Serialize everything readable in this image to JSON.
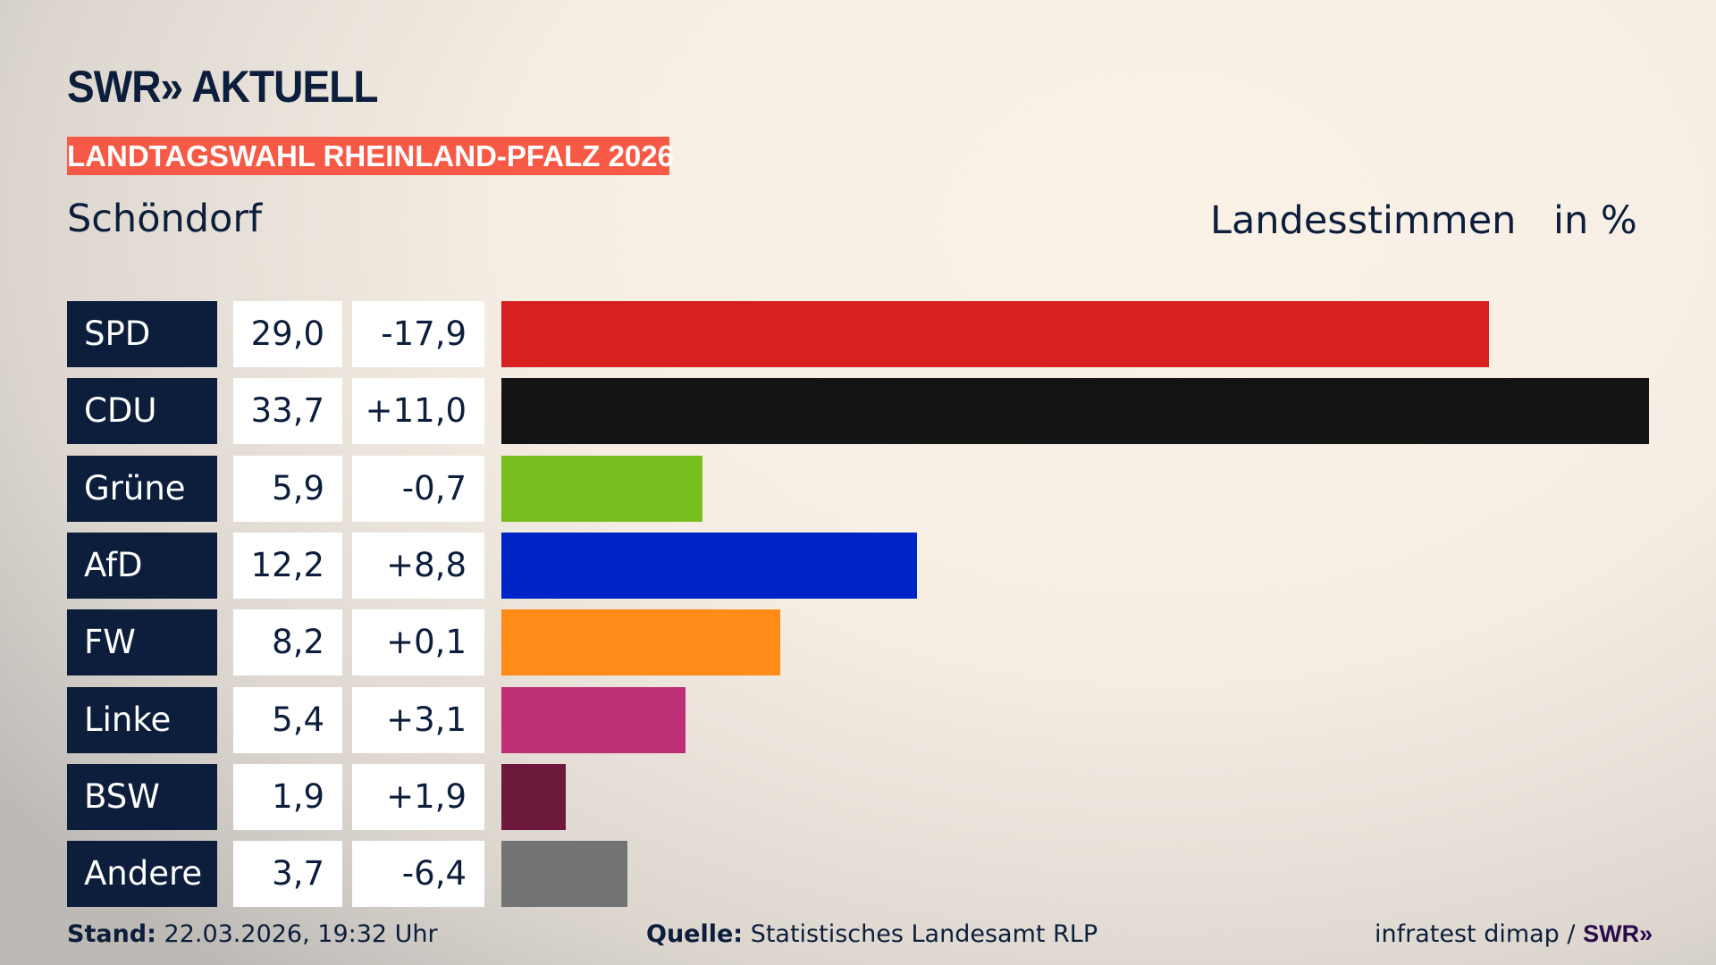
{
  "header": {
    "logo": "SWR» AKTUELL",
    "banner": "LANDTAGSWAHL RHEINLAND-PFALZ 2026",
    "place": "Schöndorf",
    "measure": "Landesstimmen",
    "unit": "in %"
  },
  "chart_data": {
    "type": "bar",
    "orientation": "horizontal",
    "categories": [
      "SPD",
      "CDU",
      "Grüne",
      "AfD",
      "FW",
      "Linke",
      "BSW",
      "Andere"
    ],
    "values": [
      29.0,
      33.7,
      5.9,
      12.2,
      8.2,
      5.4,
      1.9,
      3.7
    ],
    "value_labels": [
      "29,0",
      "33,7",
      "5,9",
      "12,2",
      "8,2",
      "5,4",
      "1,9",
      "3,7"
    ],
    "diff_labels": [
      "-17,9",
      "+11,0",
      "-0,7",
      "+8,8",
      "+0,1",
      "+3,1",
      "+1,9",
      "-6,4"
    ],
    "colors": [
      "#d72020",
      "#141414",
      "#78be1e",
      "#0023c8",
      "#ff8c19",
      "#be3075",
      "#6c193c",
      "#737373"
    ],
    "xlim": [
      0,
      33.7
    ]
  },
  "footer": {
    "stand_label": "Stand:",
    "stand_value": "22.03.2026, 19:32 Uhr",
    "source_label": "Quelle:",
    "source_value": "Statistisches Landesamt RLP",
    "credit": "infratest dimap / ",
    "credit_logo": "SWR»"
  }
}
